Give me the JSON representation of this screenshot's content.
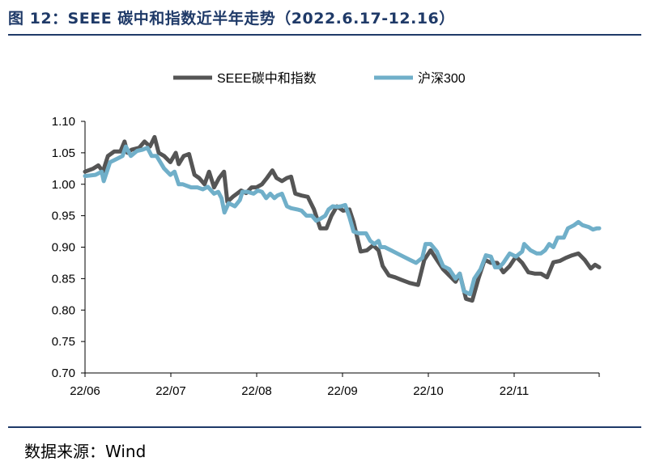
{
  "header": {
    "title": "图 12：SEEE 碳中和指数近半年走势（2022.6.17-12.16）"
  },
  "footer": {
    "source": "数据来源：Wind"
  },
  "colors": {
    "title": "#1f3a68",
    "seee": "#555555",
    "hs300": "#70afc9"
  },
  "chart_data": {
    "type": "line",
    "title": "SEEE 碳中和指数近半年走势（2022.6.17-12.16）",
    "xlabel": "",
    "ylabel": "",
    "ylim": [
      0.7,
      1.1
    ],
    "yticks": [
      "1.10",
      "1.05",
      "1.00",
      "0.95",
      "0.90",
      "0.85",
      "0.80",
      "0.75",
      "0.70"
    ],
    "xticks": [
      "22/06",
      "22/07",
      "22/08",
      "22/09",
      "22/10",
      "22/11"
    ],
    "grid": false,
    "legend": "top-center",
    "series": [
      {
        "name": "SEEE碳中和指数",
        "color": "#555555",
        "points": [
          [
            0.0,
            1.02
          ],
          [
            2.0,
            1.025
          ],
          [
            3.2,
            1.03
          ],
          [
            4.3,
            1.02
          ],
          [
            5.5,
            1.045
          ],
          [
            7.0,
            1.052
          ],
          [
            8.5,
            1.052
          ],
          [
            9.5,
            1.068
          ],
          [
            10.2,
            1.05
          ],
          [
            11.2,
            1.055
          ],
          [
            13.0,
            1.058
          ],
          [
            14.3,
            1.068
          ],
          [
            15.6,
            1.06
          ],
          [
            16.7,
            1.075
          ],
          [
            17.7,
            1.05
          ],
          [
            19.0,
            1.045
          ],
          [
            20.5,
            1.035
          ],
          [
            21.8,
            1.05
          ],
          [
            22.5,
            1.032
          ],
          [
            23.7,
            1.045
          ],
          [
            25.0,
            1.048
          ],
          [
            26.3,
            1.015
          ],
          [
            27.4,
            1.01
          ],
          [
            28.7,
            1.0
          ],
          [
            29.8,
            1.02
          ],
          [
            31.0,
            0.995
          ],
          [
            32.2,
            1.01
          ],
          [
            33.4,
            1.02
          ],
          [
            34.2,
            0.972
          ],
          [
            35.5,
            0.98
          ],
          [
            36.5,
            0.985
          ],
          [
            37.5,
            0.99
          ],
          [
            38.7,
            0.986
          ],
          [
            40.0,
            0.995
          ],
          [
            41.2,
            0.995
          ],
          [
            42.5,
            1.0
          ],
          [
            43.7,
            1.01
          ],
          [
            45.0,
            1.022
          ],
          [
            46.0,
            1.01
          ],
          [
            47.3,
            1.005
          ],
          [
            48.5,
            1.01
          ],
          [
            49.5,
            1.012
          ],
          [
            50.5,
            0.985
          ],
          [
            52.0,
            0.982
          ],
          [
            53.5,
            0.98
          ],
          [
            55.0,
            0.96
          ],
          [
            56.5,
            0.93
          ],
          [
            58.0,
            0.93
          ],
          [
            59.2,
            0.95
          ],
          [
            60.5,
            0.965
          ],
          [
            62.0,
            0.958
          ],
          [
            63.5,
            0.96
          ],
          [
            64.5,
            0.94
          ],
          [
            66.2,
            0.893
          ],
          [
            67.7,
            0.895
          ],
          [
            69.2,
            0.903
          ],
          [
            70.5,
            0.895
          ],
          [
            71.5,
            0.87
          ],
          [
            73.0,
            0.855
          ],
          [
            74.5,
            0.852
          ],
          [
            76.0,
            0.848
          ],
          [
            78.0,
            0.843
          ],
          [
            80.0,
            0.84
          ],
          [
            81.5,
            0.88
          ],
          [
            83.0,
            0.895
          ],
          [
            84.5,
            0.88
          ],
          [
            86.0,
            0.865
          ],
          [
            87.5,
            0.855
          ],
          [
            89.0,
            0.845
          ],
          [
            90.0,
            0.858
          ],
          [
            91.5,
            0.818
          ],
          [
            93.0,
            0.815
          ],
          [
            94.5,
            0.85
          ],
          [
            96.0,
            0.88
          ],
          [
            97.5,
            0.875
          ],
          [
            99.0,
            0.875
          ],
          [
            100.5,
            0.86
          ],
          [
            102.0,
            0.87
          ],
          [
            103.5,
            0.885
          ],
          [
            105.0,
            0.875
          ],
          [
            106.5,
            0.86
          ],
          [
            108.0,
            0.858
          ],
          [
            109.5,
            0.858
          ],
          [
            111.0,
            0.852
          ],
          [
            112.5,
            0.876
          ],
          [
            114.0,
            0.878
          ],
          [
            115.5,
            0.883
          ],
          [
            117.0,
            0.887
          ],
          [
            118.5,
            0.89
          ],
          [
            120.0,
            0.88
          ],
          [
            121.5,
            0.866
          ],
          [
            122.5,
            0.872
          ],
          [
            123.5,
            0.868
          ]
        ]
      },
      {
        "name": "沪深300",
        "color": "#70afc9",
        "points": [
          [
            0.0,
            1.013
          ],
          [
            2.5,
            1.015
          ],
          [
            4.0,
            1.02
          ],
          [
            4.5,
            1.005
          ],
          [
            6.0,
            1.035
          ],
          [
            7.5,
            1.04
          ],
          [
            9.0,
            1.045
          ],
          [
            9.8,
            1.06
          ],
          [
            11.0,
            1.045
          ],
          [
            12.5,
            1.053
          ],
          [
            13.8,
            1.055
          ],
          [
            15.0,
            1.058
          ],
          [
            16.0,
            1.045
          ],
          [
            17.2,
            1.045
          ],
          [
            19.0,
            1.025
          ],
          [
            20.5,
            1.015
          ],
          [
            21.5,
            1.02
          ],
          [
            22.5,
            1.0
          ],
          [
            23.5,
            1.0
          ],
          [
            25.5,
            0.995
          ],
          [
            27.0,
            0.995
          ],
          [
            28.3,
            0.992
          ],
          [
            29.5,
            0.996
          ],
          [
            31.0,
            0.985
          ],
          [
            32.0,
            0.988
          ],
          [
            32.8,
            0.978
          ],
          [
            33.5,
            0.955
          ],
          [
            34.5,
            0.97
          ],
          [
            36.0,
            0.965
          ],
          [
            37.2,
            0.975
          ],
          [
            37.8,
            0.988
          ],
          [
            39.0,
            0.988
          ],
          [
            40.5,
            0.985
          ],
          [
            41.5,
            0.99
          ],
          [
            42.5,
            0.988
          ],
          [
            43.5,
            0.978
          ],
          [
            44.5,
            0.985
          ],
          [
            45.5,
            0.978
          ],
          [
            46.2,
            0.982
          ],
          [
            47.3,
            0.985
          ],
          [
            48.5,
            0.965
          ],
          [
            49.5,
            0.962
          ],
          [
            51.0,
            0.96
          ],
          [
            52.0,
            0.958
          ],
          [
            53.2,
            0.95
          ],
          [
            54.5,
            0.95
          ],
          [
            55.5,
            0.942
          ],
          [
            56.5,
            0.945
          ],
          [
            57.7,
            0.95
          ],
          [
            58.5,
            0.96
          ],
          [
            59.5,
            0.965
          ],
          [
            60.5,
            0.964
          ],
          [
            61.5,
            0.965
          ],
          [
            62.5,
            0.967
          ],
          [
            63.5,
            0.948
          ],
          [
            64.5,
            0.925
          ],
          [
            65.8,
            0.922
          ],
          [
            67.5,
            0.922
          ],
          [
            68.5,
            0.91
          ],
          [
            69.5,
            0.905
          ],
          [
            70.5,
            0.91
          ],
          [
            71.0,
            0.9
          ],
          [
            72.0,
            0.9
          ],
          [
            73.5,
            0.895
          ],
          [
            75.0,
            0.89
          ],
          [
            76.5,
            0.885
          ],
          [
            78.0,
            0.88
          ],
          [
            79.5,
            0.875
          ],
          [
            81.0,
            0.883
          ],
          [
            81.8,
            0.905
          ],
          [
            83.0,
            0.905
          ],
          [
            84.5,
            0.893
          ],
          [
            86.0,
            0.87
          ],
          [
            87.5,
            0.865
          ],
          [
            89.0,
            0.85
          ],
          [
            90.0,
            0.858
          ],
          [
            91.0,
            0.83
          ],
          [
            92.5,
            0.825
          ],
          [
            93.5,
            0.85
          ],
          [
            95.0,
            0.865
          ],
          [
            96.3,
            0.887
          ],
          [
            97.5,
            0.885
          ],
          [
            98.5,
            0.868
          ],
          [
            99.5,
            0.868
          ],
          [
            100.5,
            0.875
          ],
          [
            102.0,
            0.89
          ],
          [
            103.5,
            0.885
          ],
          [
            105.0,
            0.893
          ],
          [
            105.5,
            0.905
          ],
          [
            107.0,
            0.895
          ],
          [
            108.5,
            0.89
          ],
          [
            109.5,
            0.89
          ],
          [
            110.5,
            0.895
          ],
          [
            111.5,
            0.905
          ],
          [
            112.5,
            0.9
          ],
          [
            113.5,
            0.915
          ],
          [
            115.0,
            0.915
          ],
          [
            116.0,
            0.93
          ],
          [
            117.5,
            0.935
          ],
          [
            118.5,
            0.94
          ],
          [
            119.5,
            0.935
          ],
          [
            121.0,
            0.932
          ],
          [
            122.0,
            0.928
          ],
          [
            123.0,
            0.93
          ],
          [
            123.5,
            0.93
          ]
        ]
      }
    ]
  }
}
